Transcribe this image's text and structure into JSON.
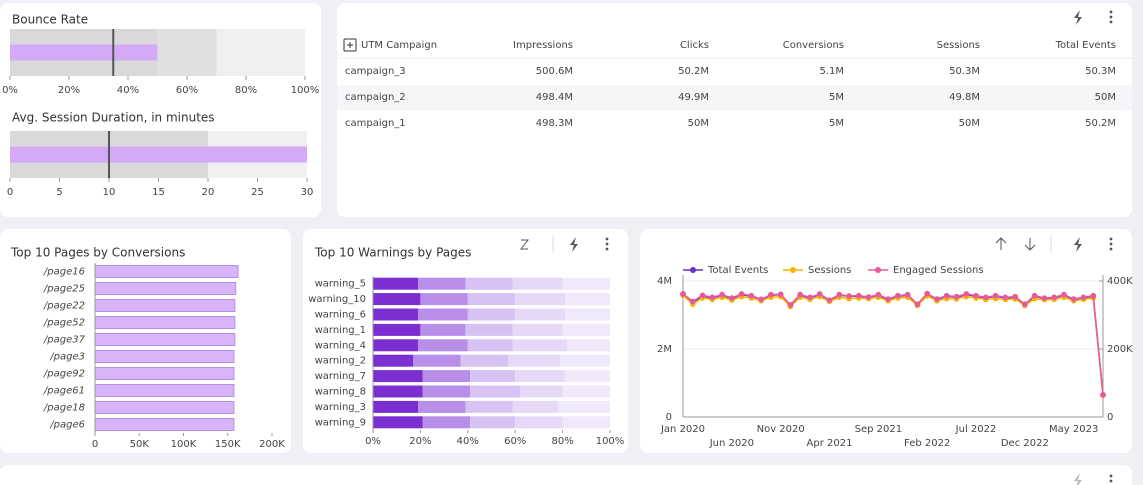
{
  "chart_data": [
    {
      "type": "bullet",
      "title": "Bounce Rate",
      "value": 50,
      "target": 35,
      "ranges": [
        50,
        70,
        100
      ],
      "range_colors": [
        "#d9d9d9",
        "#e0e0e0",
        "#efefef"
      ],
      "color": "#d4aaf8",
      "target_color": "#555555",
      "xlim": [
        0,
        100
      ],
      "xticks": [
        {
          "value": 0,
          "label": "0%"
        },
        {
          "value": 20,
          "label": "20%"
        },
        {
          "value": 40,
          "label": "40%"
        },
        {
          "value": 60,
          "label": "60%"
        },
        {
          "value": 80,
          "label": "80%"
        },
        {
          "value": 100,
          "label": "100%"
        }
      ]
    },
    {
      "type": "bullet",
      "title": "Avg. Session Duration, in minutes",
      "value": 30,
      "target": 10,
      "ranges": [
        20,
        30
      ],
      "range_colors": [
        "#d9d9d9",
        "#efefef"
      ],
      "color": "#d4aaf8",
      "target_color": "#555555",
      "xlim": [
        0,
        30
      ],
      "xticks": [
        0,
        5,
        10,
        15,
        20,
        25,
        30
      ]
    },
    {
      "type": "hbar",
      "title": "Top 10 Pages by Conversions",
      "color": "#d8b4f8",
      "edge_color": "#b98fe6",
      "categories": [
        "/page16",
        "/page25",
        "/page22",
        "/page52",
        "/page37",
        "/page3",
        "/page92",
        "/page61",
        "/page18",
        "/page6"
      ],
      "values": [
        161600,
        159000,
        158000,
        158000,
        158000,
        157000,
        157000,
        157000,
        157000,
        157000
      ],
      "xlim": [
        0,
        200000
      ],
      "xticks": [
        0,
        {
          "value": 50000,
          "label": "50K"
        },
        {
          "value": 100000,
          "label": "100K"
        },
        {
          "value": 150000,
          "label": "150K"
        },
        {
          "value": 200000,
          "label": "200K"
        }
      ]
    },
    {
      "type": "stacked100",
      "title": "Top 10 Warnings by Pages",
      "categories": [
        "warning_5",
        "warning_10",
        "warning_6",
        "warning_1",
        "warning_4",
        "warning_2",
        "warning_7",
        "warning_8",
        "warning_3",
        "warning_9"
      ],
      "series": [
        {
          "color": "#7c2fd0",
          "values": [
            19,
            20,
            19,
            20,
            19,
            17,
            21,
            21,
            19,
            21
          ]
        },
        {
          "color": "#b98ee8",
          "values": [
            20,
            20,
            21,
            19,
            21,
            20,
            20,
            20,
            20,
            20
          ]
        },
        {
          "color": "#d7c2f3",
          "values": [
            20,
            20,
            20,
            20,
            19,
            20,
            19,
            21,
            20,
            19
          ]
        },
        {
          "color": "#e6d9f8",
          "values": [
            21,
            21,
            21,
            21,
            23,
            22,
            21,
            18,
            19,
            20
          ]
        },
        {
          "color": "#f0e8fb",
          "values": [
            20,
            19,
            19,
            20,
            18,
            21,
            19,
            20,
            22,
            20
          ]
        }
      ],
      "xlim": [
        0,
        100
      ],
      "xticks": [
        {
          "value": 0,
          "label": "0%"
        },
        {
          "value": 20,
          "label": "20%"
        },
        {
          "value": 40,
          "label": "40%"
        },
        {
          "value": 60,
          "label": "60%"
        },
        {
          "value": 80,
          "label": "80%"
        },
        {
          "value": 100,
          "label": "100%"
        }
      ]
    },
    {
      "type": "line",
      "grid": true,
      "categories": [
        "Jan 2020",
        null,
        null,
        null,
        null,
        "Jun 2020",
        null,
        null,
        null,
        null,
        "Nov 2020",
        null,
        null,
        null,
        null,
        "Apr 2021",
        null,
        null,
        null,
        null,
        "Sep 2021",
        null,
        null,
        null,
        null,
        "Feb 2022",
        null,
        null,
        null,
        null,
        "Jul 2022",
        null,
        null,
        null,
        null,
        "Dec 2022",
        null,
        null,
        null,
        null,
        "May 2023",
        null,
        null,
        null
      ],
      "series": [
        {
          "name": "Total Events",
          "color": "#6a2fc5",
          "values": [
            3620000,
            3380000,
            3550000,
            3500000,
            3580000,
            3480000,
            3600000,
            3550000,
            3450000,
            3580000,
            3600000,
            3280000,
            3580000,
            3500000,
            3600000,
            3420000,
            3580000,
            3550000,
            3550000,
            3520000,
            3580000,
            3450000,
            3550000,
            3580000,
            3300000,
            3620000,
            3450000,
            3550000,
            3520000,
            3600000,
            3550000,
            3500000,
            3550000,
            3500000,
            3520000,
            3300000,
            3550000,
            3480000,
            3500000,
            3580000,
            3450000,
            3500000,
            3550000,
            650000
          ]
        },
        {
          "name": "Sessions",
          "color": "#f4b400",
          "values": [
            3580000,
            3320000,
            3500000,
            3460000,
            3520000,
            3440000,
            3540000,
            3500000,
            3420000,
            3520000,
            3540000,
            3250000,
            3520000,
            3460000,
            3540000,
            3400000,
            3520000,
            3480000,
            3500000,
            3480000,
            3520000,
            3420000,
            3500000,
            3520000,
            3280000,
            3560000,
            3420000,
            3480000,
            3470000,
            3540000,
            3500000,
            3460000,
            3480000,
            3460000,
            3470000,
            3280000,
            3480000,
            3450000,
            3460000,
            3520000,
            3420000,
            3460000,
            3500000,
            640000
          ]
        },
        {
          "name": "Engaged Sessions",
          "color": "#e8589f",
          "axis": "y2",
          "values": [
            362000,
            340000,
            358000,
            352000,
            360000,
            350000,
            362000,
            357000,
            346000,
            360000,
            361000,
            330000,
            360000,
            352000,
            362000,
            344000,
            360000,
            356000,
            357000,
            353000,
            360000,
            347000,
            357000,
            360000,
            332000,
            363000,
            347000,
            357000,
            354000,
            362000,
            357000,
            352000,
            357000,
            352000,
            354000,
            332000,
            357000,
            350000,
            352000,
            360000,
            347000,
            352000,
            357000,
            65000
          ]
        }
      ],
      "ylim": [
        0,
        4000000
      ],
      "yticks": [
        0,
        {
          "value": 2000000,
          "label": "2M"
        },
        {
          "value": 4000000,
          "label": "4M"
        }
      ],
      "y2lim": [
        0,
        400000
      ],
      "y2ticks": [
        0,
        {
          "value": 200000,
          "label": "200K"
        },
        {
          "value": 400000,
          "label": "400K"
        }
      ]
    }
  ],
  "table": {
    "columns": [
      "UTM Campaign",
      "Impressions",
      "Clicks",
      "Conversions",
      "Sessions",
      "Total Events"
    ],
    "rows": [
      [
        "campaign_3",
        "500.6M",
        "50.2M",
        "5.1M",
        "50.3M",
        "50.3M"
      ],
      [
        "campaign_2",
        "498.4M",
        "49.9M",
        "5M",
        "49.8M",
        "50M"
      ],
      [
        "campaign_1",
        "498.3M",
        "50M",
        "5M",
        "50M",
        "50.2M"
      ]
    ]
  }
}
